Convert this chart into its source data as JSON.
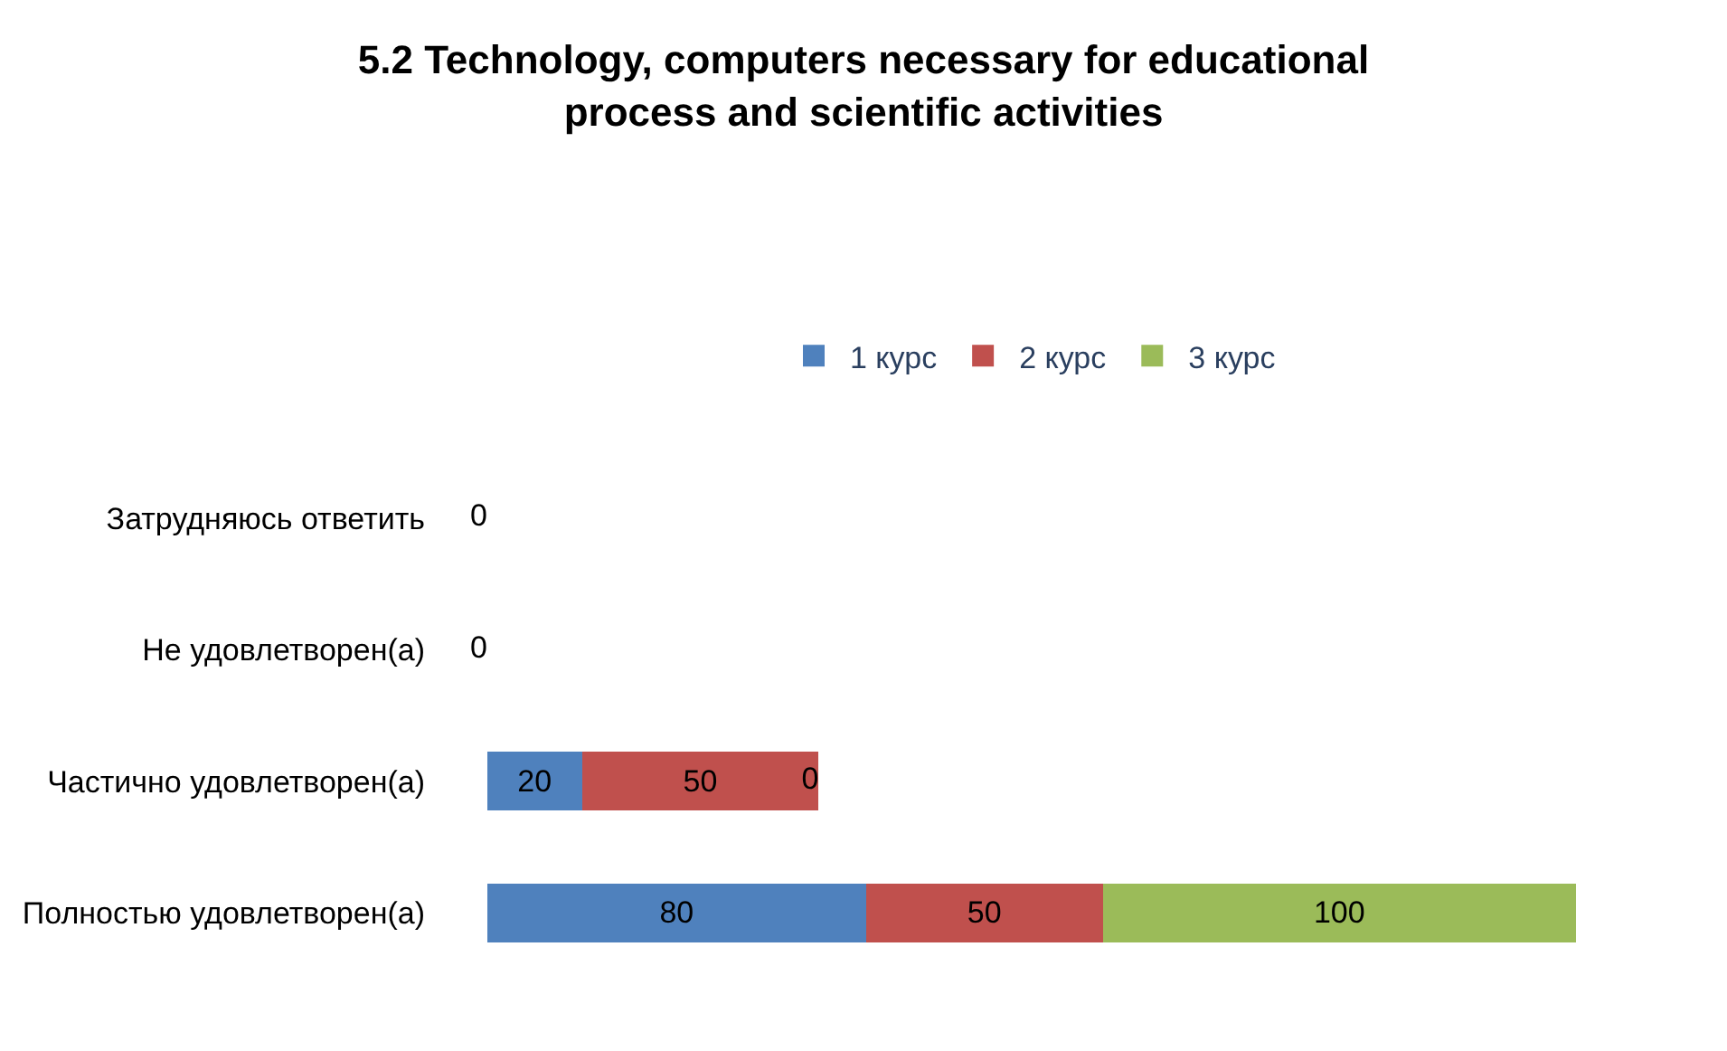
{
  "chart_data": {
    "type": "bar",
    "orientation": "horizontal",
    "stacked": true,
    "title": "5.2 Technology, computers necessary for educational process and scientific activities",
    "categories": [
      "Затрудняюсь ответить",
      "Не удовлетворен(а)",
      "Частично удовлетворен(а)",
      "Полностью удовлетворен(а)"
    ],
    "series": [
      {
        "name": "1 курс",
        "color": "#4f81bd",
        "values": [
          0,
          0,
          20,
          80
        ],
        "value_labels": [
          "0",
          "0",
          "20",
          "80"
        ]
      },
      {
        "name": "2 курс",
        "color": "#c0504d",
        "values": [
          0,
          0,
          50,
          50
        ],
        "value_labels": [
          null,
          null,
          "50",
          "50"
        ]
      },
      {
        "name": "3 курс",
        "color": "#9bbb59",
        "values": [
          0,
          0,
          0,
          100
        ],
        "value_labels": [
          null,
          null,
          "0",
          "100"
        ]
      }
    ],
    "legend": "top"
  }
}
